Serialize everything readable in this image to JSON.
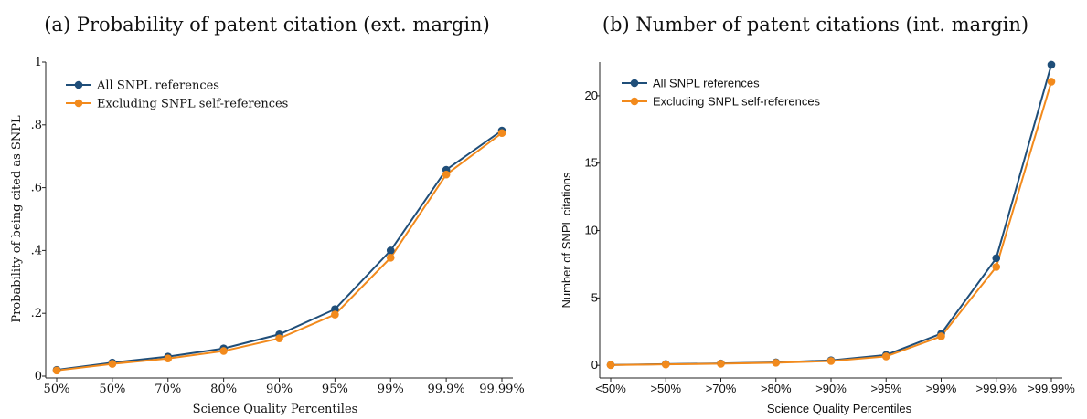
{
  "chart_data": [
    {
      "type": "line",
      "title": "(a) Probability of patent citation (ext. margin)",
      "xlabel": "Science Quality Percentiles",
      "ylabel": "Probability of being cited as SNPL",
      "categories": [
        "50%",
        "50%",
        "70%",
        "80%",
        "90%",
        "95%",
        "99%",
        "99.9%",
        "99.99%"
      ],
      "yticks": [
        "0",
        ".2",
        ".4",
        ".6",
        ".8",
        "1"
      ],
      "ylim": [
        0,
        1
      ],
      "grid": false,
      "legend_position": "top-left",
      "series": [
        {
          "name": "All SNPL references",
          "color": "#1f4e79",
          "values": [
            0.02,
            0.043,
            0.062,
            0.088,
            0.133,
            0.213,
            0.4,
            0.657,
            0.782
          ]
        },
        {
          "name": "Excluding SNPL self-references",
          "color": "#f28a1c",
          "values": [
            0.018,
            0.039,
            0.056,
            0.08,
            0.12,
            0.196,
            0.377,
            0.642,
            0.774
          ]
        }
      ]
    },
    {
      "type": "line",
      "title": "(b) Number of patent citations (int. margin)",
      "xlabel": "Science Quality Percentiles",
      "ylabel": "Number of SNPL citations",
      "categories": [
        "<50%",
        ">50%",
        ">70%",
        ">80%",
        ">90%",
        ">95%",
        ">99%",
        ">99.9%",
        ">99.99%"
      ],
      "yticks": [
        "0",
        "5",
        "10",
        "15",
        "20"
      ],
      "ylim": [
        -0.8,
        22.5
      ],
      "grid": false,
      "legend_position": "top-left",
      "series": [
        {
          "name": "All SNPL references",
          "color": "#1f4e79",
          "values": [
            0.03,
            0.09,
            0.14,
            0.22,
            0.37,
            0.77,
            2.35,
            7.95,
            22.3
          ]
        },
        {
          "name": "Excluding SNPL self-references",
          "color": "#f28a1c",
          "values": [
            0.02,
            0.07,
            0.12,
            0.19,
            0.32,
            0.66,
            2.15,
            7.3,
            21.05
          ]
        }
      ]
    }
  ]
}
